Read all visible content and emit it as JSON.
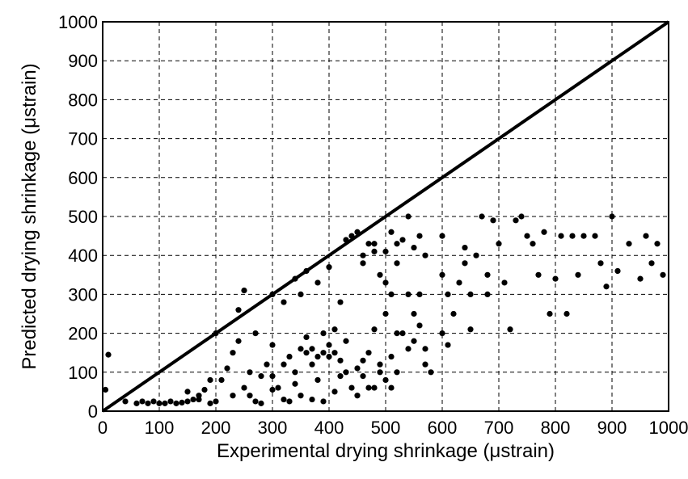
{
  "chart_data": {
    "type": "scatter",
    "xlabel": "Experimental drying shrinkage (μstrain)",
    "ylabel": "Predicted drying shrinkage (μstrain)",
    "xlim": [
      0,
      1000
    ],
    "ylim": [
      0,
      1000
    ],
    "xticks": [
      0,
      100,
      200,
      300,
      400,
      500,
      600,
      700,
      800,
      900,
      1000
    ],
    "yticks": [
      0,
      100,
      200,
      300,
      400,
      500,
      600,
      700,
      800,
      900,
      1000
    ],
    "grid": true,
    "color": "#000000",
    "diagonal": {
      "x": [
        0,
        1000
      ],
      "y": [
        0,
        1000
      ]
    },
    "x": [
      5,
      10,
      40,
      60,
      70,
      80,
      90,
      100,
      110,
      120,
      130,
      140,
      150,
      160,
      170,
      180,
      190,
      200,
      210,
      220,
      230,
      240,
      250,
      260,
      270,
      280,
      290,
      300,
      310,
      320,
      330,
      340,
      350,
      360,
      370,
      380,
      390,
      400,
      410,
      420,
      430,
      440,
      450,
      460,
      470,
      480,
      490,
      500,
      510,
      520,
      530,
      540,
      550,
      560,
      570,
      580,
      440,
      450,
      460,
      470,
      480,
      490,
      500,
      510,
      520,
      530,
      540,
      550,
      560,
      570,
      500,
      510,
      520,
      550,
      560,
      570,
      600,
      610,
      620,
      630,
      640,
      650,
      660,
      670,
      680,
      690,
      700,
      710,
      720,
      730,
      740,
      750,
      760,
      770,
      780,
      790,
      800,
      810,
      820,
      830,
      840,
      850,
      870,
      880,
      890,
      900,
      910,
      930,
      950,
      960,
      970,
      980,
      990,
      200,
      240,
      250,
      270,
      300,
      320,
      340,
      350,
      360,
      380,
      400,
      420,
      430,
      460,
      480,
      500,
      520,
      540,
      600,
      640,
      680,
      650,
      600,
      610,
      150,
      170,
      190,
      230,
      260,
      280,
      300,
      330,
      350,
      370,
      390,
      410,
      420,
      450,
      470,
      490,
      510,
      360,
      380,
      400,
      370,
      390,
      410,
      430,
      460,
      480,
      340,
      320,
      300
    ],
    "values": [
      55,
      145,
      25,
      20,
      25,
      20,
      25,
      20,
      20,
      25,
      20,
      22,
      25,
      30,
      40,
      55,
      20,
      25,
      80,
      110,
      150,
      180,
      60,
      40,
      25,
      90,
      120,
      170,
      60,
      30,
      140,
      100,
      160,
      190,
      120,
      80,
      150,
      170,
      210,
      130,
      180,
      60,
      110,
      90,
      150,
      60,
      120,
      80,
      140,
      100,
      200,
      160,
      180,
      220,
      120,
      100,
      450,
      460,
      400,
      430,
      410,
      350,
      330,
      460,
      380,
      440,
      300,
      420,
      450,
      400,
      250,
      300,
      200,
      250,
      300,
      160,
      350,
      300,
      250,
      330,
      380,
      210,
      400,
      500,
      350,
      490,
      430,
      330,
      210,
      490,
      500,
      450,
      430,
      350,
      460,
      250,
      340,
      450,
      250,
      450,
      350,
      450,
      450,
      380,
      320,
      500,
      360,
      430,
      340,
      450,
      380,
      430,
      350,
      200,
      260,
      310,
      200,
      300,
      280,
      340,
      300,
      360,
      330,
      370,
      280,
      440,
      380,
      430,
      410,
      430,
      500,
      450,
      420,
      300,
      300,
      200,
      170,
      50,
      30,
      80,
      40,
      100,
      20,
      55,
      25,
      40,
      30,
      25,
      50,
      90,
      40,
      60,
      100,
      60,
      150,
      140,
      140,
      160,
      200,
      150,
      100,
      130,
      210,
      70,
      120,
      90
    ]
  }
}
